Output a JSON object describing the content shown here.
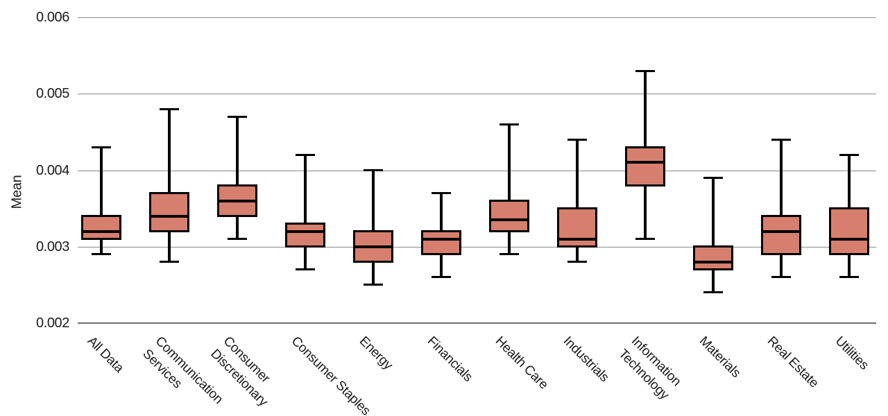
{
  "chart_data": {
    "type": "box",
    "ylabel": "Mean",
    "ylim": [
      0.002,
      0.006
    ],
    "yticks": [
      0.002,
      0.003,
      0.004,
      0.005,
      0.006
    ],
    "ytick_labels": [
      "0.002",
      "0.003",
      "0.004",
      "0.005",
      "0.006"
    ],
    "grid": "horizontal",
    "legend": false,
    "x_tick_rotation_deg": 45,
    "categories": [
      "All Data",
      "Communication Services",
      "Consumer Discretionary",
      "Consumer Staples",
      "Energy",
      "Financials",
      "Health Care",
      "Industrials",
      "Information Technology",
      "Materials",
      "Real Estate",
      "Utilities"
    ],
    "boxes": [
      {
        "category": "All Data",
        "label": "All Data",
        "whisker_low": 0.0029,
        "q1": 0.0031,
        "median": 0.0032,
        "q3": 0.0034,
        "whisker_high": 0.0043
      },
      {
        "category": "Communication Services",
        "label": "Communication\nServices",
        "whisker_low": 0.0028,
        "q1": 0.0032,
        "median": 0.0034,
        "q3": 0.0037,
        "whisker_high": 0.0048
      },
      {
        "category": "Consumer Discretionary",
        "label": "Consumer\nDiscretionary",
        "whisker_low": 0.0031,
        "q1": 0.0034,
        "median": 0.0036,
        "q3": 0.0038,
        "whisker_high": 0.0047
      },
      {
        "category": "Consumer Staples",
        "label": "Consumer Staples",
        "whisker_low": 0.0027,
        "q1": 0.003,
        "median": 0.0032,
        "q3": 0.0033,
        "whisker_high": 0.0042
      },
      {
        "category": "Energy",
        "label": "Energy",
        "whisker_low": 0.0025,
        "q1": 0.0028,
        "median": 0.003,
        "q3": 0.0032,
        "whisker_high": 0.004
      },
      {
        "category": "Financials",
        "label": "Financials",
        "whisker_low": 0.0026,
        "q1": 0.0029,
        "median": 0.0031,
        "q3": 0.0032,
        "whisker_high": 0.0037
      },
      {
        "category": "Health Care",
        "label": "Health Care",
        "whisker_low": 0.0029,
        "q1": 0.0032,
        "median": 0.00335,
        "q3": 0.0036,
        "whisker_high": 0.0046
      },
      {
        "category": "Industrials",
        "label": "Industrials",
        "whisker_low": 0.0028,
        "q1": 0.003,
        "median": 0.0031,
        "q3": 0.0035,
        "whisker_high": 0.0044
      },
      {
        "category": "Information Technology",
        "label": "Information\nTechnology",
        "whisker_low": 0.0031,
        "q1": 0.0038,
        "median": 0.0041,
        "q3": 0.0043,
        "whisker_high": 0.0053
      },
      {
        "category": "Materials",
        "label": "Materials",
        "whisker_low": 0.0024,
        "q1": 0.0027,
        "median": 0.0028,
        "q3": 0.003,
        "whisker_high": 0.0039
      },
      {
        "category": "Real Estate",
        "label": "Real Estate",
        "whisker_low": 0.0026,
        "q1": 0.0029,
        "median": 0.0032,
        "q3": 0.0034,
        "whisker_high": 0.0044
      },
      {
        "category": "Utilities",
        "label": "Utilities",
        "whisker_low": 0.0026,
        "q1": 0.0029,
        "median": 0.0031,
        "q3": 0.0035,
        "whisker_high": 0.0042
      }
    ],
    "colors": {
      "box_fill": "#d67f6f",
      "box_border": "#000000",
      "median_line": "#000000",
      "whisker": "#000000",
      "gridline": "#8a8a8a",
      "axis_line": "#6b6b6b",
      "text": "#1a1a1a",
      "background": "#ffffff"
    }
  }
}
